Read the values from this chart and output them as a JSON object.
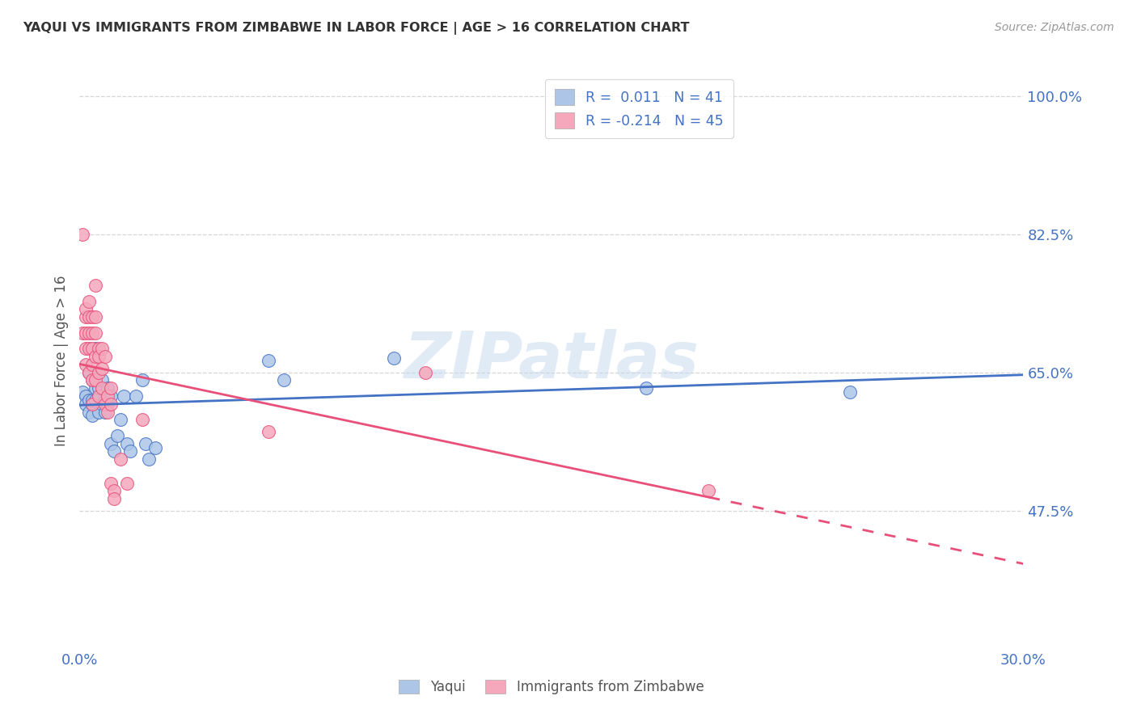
{
  "title": "YAQUI VS IMMIGRANTS FROM ZIMBABWE IN LABOR FORCE | AGE > 16 CORRELATION CHART",
  "source": "Source: ZipAtlas.com",
  "ylabel_label": "In Labor Force | Age > 16",
  "xmin": 0.0,
  "xmax": 0.3,
  "ymin": 0.3,
  "ymax": 1.03,
  "yaqui_R": "0.011",
  "yaqui_N": "41",
  "zimb_R": "-0.214",
  "zimb_N": "45",
  "color_blue": "#adc6e8",
  "color_pink": "#f5a8bc",
  "line_blue": "#4472c4",
  "line_pink": "#e8507a",
  "watermark": "ZIPatlas",
  "yaqui_points": [
    [
      0.001,
      0.625
    ],
    [
      0.002,
      0.62
    ],
    [
      0.002,
      0.61
    ],
    [
      0.003,
      0.65
    ],
    [
      0.003,
      0.615
    ],
    [
      0.003,
      0.6
    ],
    [
      0.004,
      0.64
    ],
    [
      0.004,
      0.61
    ],
    [
      0.004,
      0.615
    ],
    [
      0.004,
      0.595
    ],
    [
      0.005,
      0.65
    ],
    [
      0.005,
      0.615
    ],
    [
      0.005,
      0.63
    ],
    [
      0.005,
      0.68
    ],
    [
      0.006,
      0.62
    ],
    [
      0.006,
      0.6
    ],
    [
      0.006,
      0.63
    ],
    [
      0.007,
      0.64
    ],
    [
      0.007,
      0.61
    ],
    [
      0.008,
      0.6
    ],
    [
      0.008,
      0.615
    ],
    [
      0.009,
      0.63
    ],
    [
      0.009,
      0.61
    ],
    [
      0.01,
      0.62
    ],
    [
      0.01,
      0.56
    ],
    [
      0.011,
      0.55
    ],
    [
      0.012,
      0.57
    ],
    [
      0.013,
      0.59
    ],
    [
      0.014,
      0.62
    ],
    [
      0.015,
      0.56
    ],
    [
      0.016,
      0.55
    ],
    [
      0.018,
      0.62
    ],
    [
      0.02,
      0.64
    ],
    [
      0.021,
      0.56
    ],
    [
      0.022,
      0.54
    ],
    [
      0.024,
      0.555
    ],
    [
      0.06,
      0.665
    ],
    [
      0.065,
      0.64
    ],
    [
      0.1,
      0.668
    ],
    [
      0.18,
      0.63
    ],
    [
      0.245,
      0.625
    ]
  ],
  "zimb_points": [
    [
      0.001,
      0.7
    ],
    [
      0.001,
      0.825
    ],
    [
      0.002,
      0.72
    ],
    [
      0.002,
      0.73
    ],
    [
      0.002,
      0.7
    ],
    [
      0.002,
      0.68
    ],
    [
      0.002,
      0.66
    ],
    [
      0.003,
      0.74
    ],
    [
      0.003,
      0.72
    ],
    [
      0.003,
      0.7
    ],
    [
      0.003,
      0.68
    ],
    [
      0.003,
      0.65
    ],
    [
      0.004,
      0.72
    ],
    [
      0.004,
      0.7
    ],
    [
      0.004,
      0.68
    ],
    [
      0.004,
      0.66
    ],
    [
      0.004,
      0.64
    ],
    [
      0.004,
      0.61
    ],
    [
      0.005,
      0.76
    ],
    [
      0.005,
      0.72
    ],
    [
      0.005,
      0.7
    ],
    [
      0.005,
      0.67
    ],
    [
      0.005,
      0.64
    ],
    [
      0.006,
      0.68
    ],
    [
      0.006,
      0.67
    ],
    [
      0.006,
      0.65
    ],
    [
      0.006,
      0.62
    ],
    [
      0.007,
      0.68
    ],
    [
      0.007,
      0.655
    ],
    [
      0.007,
      0.63
    ],
    [
      0.008,
      0.67
    ],
    [
      0.008,
      0.61
    ],
    [
      0.009,
      0.62
    ],
    [
      0.009,
      0.6
    ],
    [
      0.01,
      0.63
    ],
    [
      0.01,
      0.61
    ],
    [
      0.01,
      0.51
    ],
    [
      0.011,
      0.5
    ],
    [
      0.011,
      0.49
    ],
    [
      0.013,
      0.54
    ],
    [
      0.015,
      0.51
    ],
    [
      0.02,
      0.59
    ],
    [
      0.06,
      0.575
    ],
    [
      0.11,
      0.65
    ],
    [
      0.2,
      0.5
    ]
  ],
  "grid_color": "#cccccc",
  "bg_color": "#ffffff",
  "ytick_vals": [
    0.475,
    0.65,
    0.825,
    1.0
  ],
  "ytick_labels": [
    "47.5%",
    "65.0%",
    "82.5%",
    "100.0%"
  ],
  "xtick_vals": [
    0.0,
    0.05,
    0.1,
    0.15,
    0.2,
    0.25,
    0.3
  ],
  "xtick_labels": [
    "0.0%",
    "",
    "",
    "",
    "",
    "",
    "30.0%"
  ]
}
